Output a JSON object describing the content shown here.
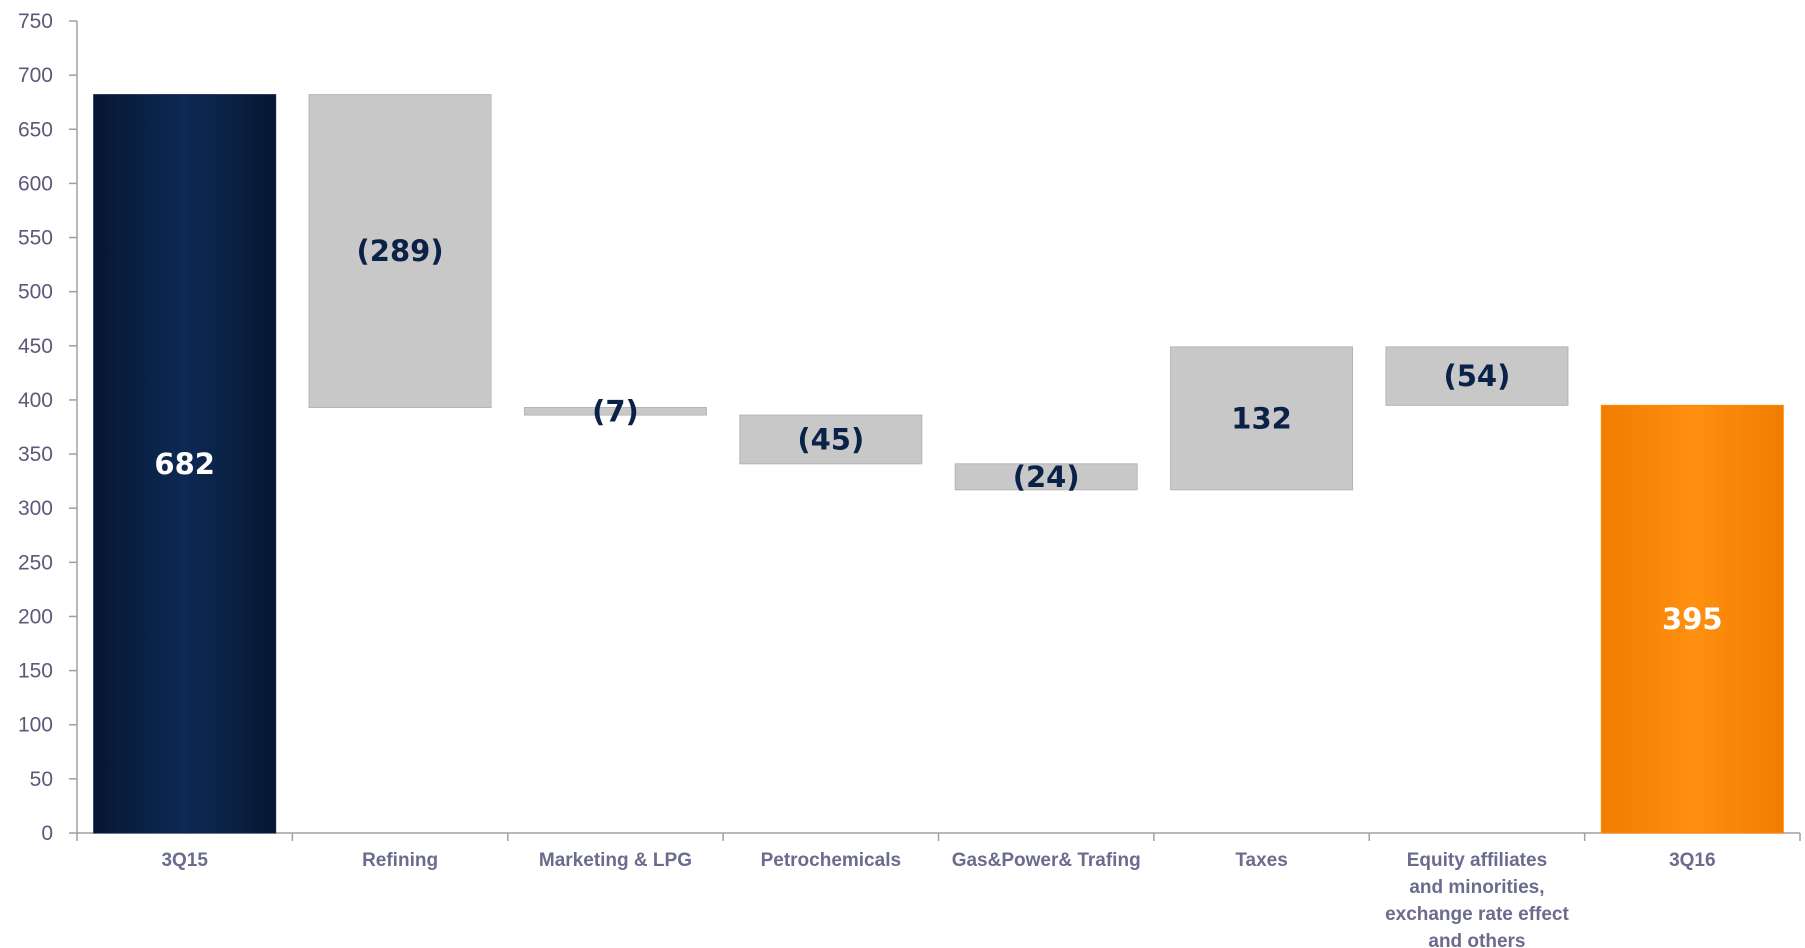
{
  "chart_data": {
    "type": "bar",
    "subtype": "waterfall",
    "categories": [
      "3Q15",
      "Refining",
      "Marketing & LPG",
      "Petrochemicals",
      "Gas&Power& Trafing",
      "Taxes",
      "Equity affiliates and minorities, exchange rate effect and others",
      "3Q16"
    ],
    "category_lines": [
      [
        "3Q15"
      ],
      [
        "Refining"
      ],
      [
        "Marketing & LPG"
      ],
      [
        "Petrochemicals"
      ],
      [
        "Gas&Power& Trafing"
      ],
      [
        "Taxes"
      ],
      [
        "Equity affiliates",
        "and minorities,",
        "exchange rate effect",
        "and others"
      ],
      [
        "3Q16"
      ]
    ],
    "values": [
      682,
      -289,
      -7,
      -45,
      -24,
      132,
      -54,
      395
    ],
    "bar_kinds": [
      "total",
      "delta",
      "delta",
      "delta",
      "delta",
      "delta",
      "delta",
      "total"
    ],
    "data_labels": [
      "682",
      "(289)",
      "(7)",
      "(45)",
      "(24)",
      "132",
      "(54)",
      "395"
    ],
    "ylim": [
      0,
      750
    ],
    "yticks": [
      0,
      50,
      100,
      150,
      200,
      250,
      300,
      350,
      400,
      450,
      500,
      550,
      600,
      650,
      700,
      750
    ],
    "xlabel": "",
    "ylabel": "",
    "title": "",
    "grid": false,
    "legend": "none",
    "colors": {
      "start_total": "#0b2248",
      "end_total": "#ff8a00",
      "delta": "#c8c8c8",
      "delta_border": "#b5b5b5",
      "label_on_dark": "#ffffff",
      "label_on_light": "#0b2248",
      "axis": "#a0a0a0",
      "axis_text": "#5a5a78",
      "category_text": "#6b6b8e"
    }
  }
}
